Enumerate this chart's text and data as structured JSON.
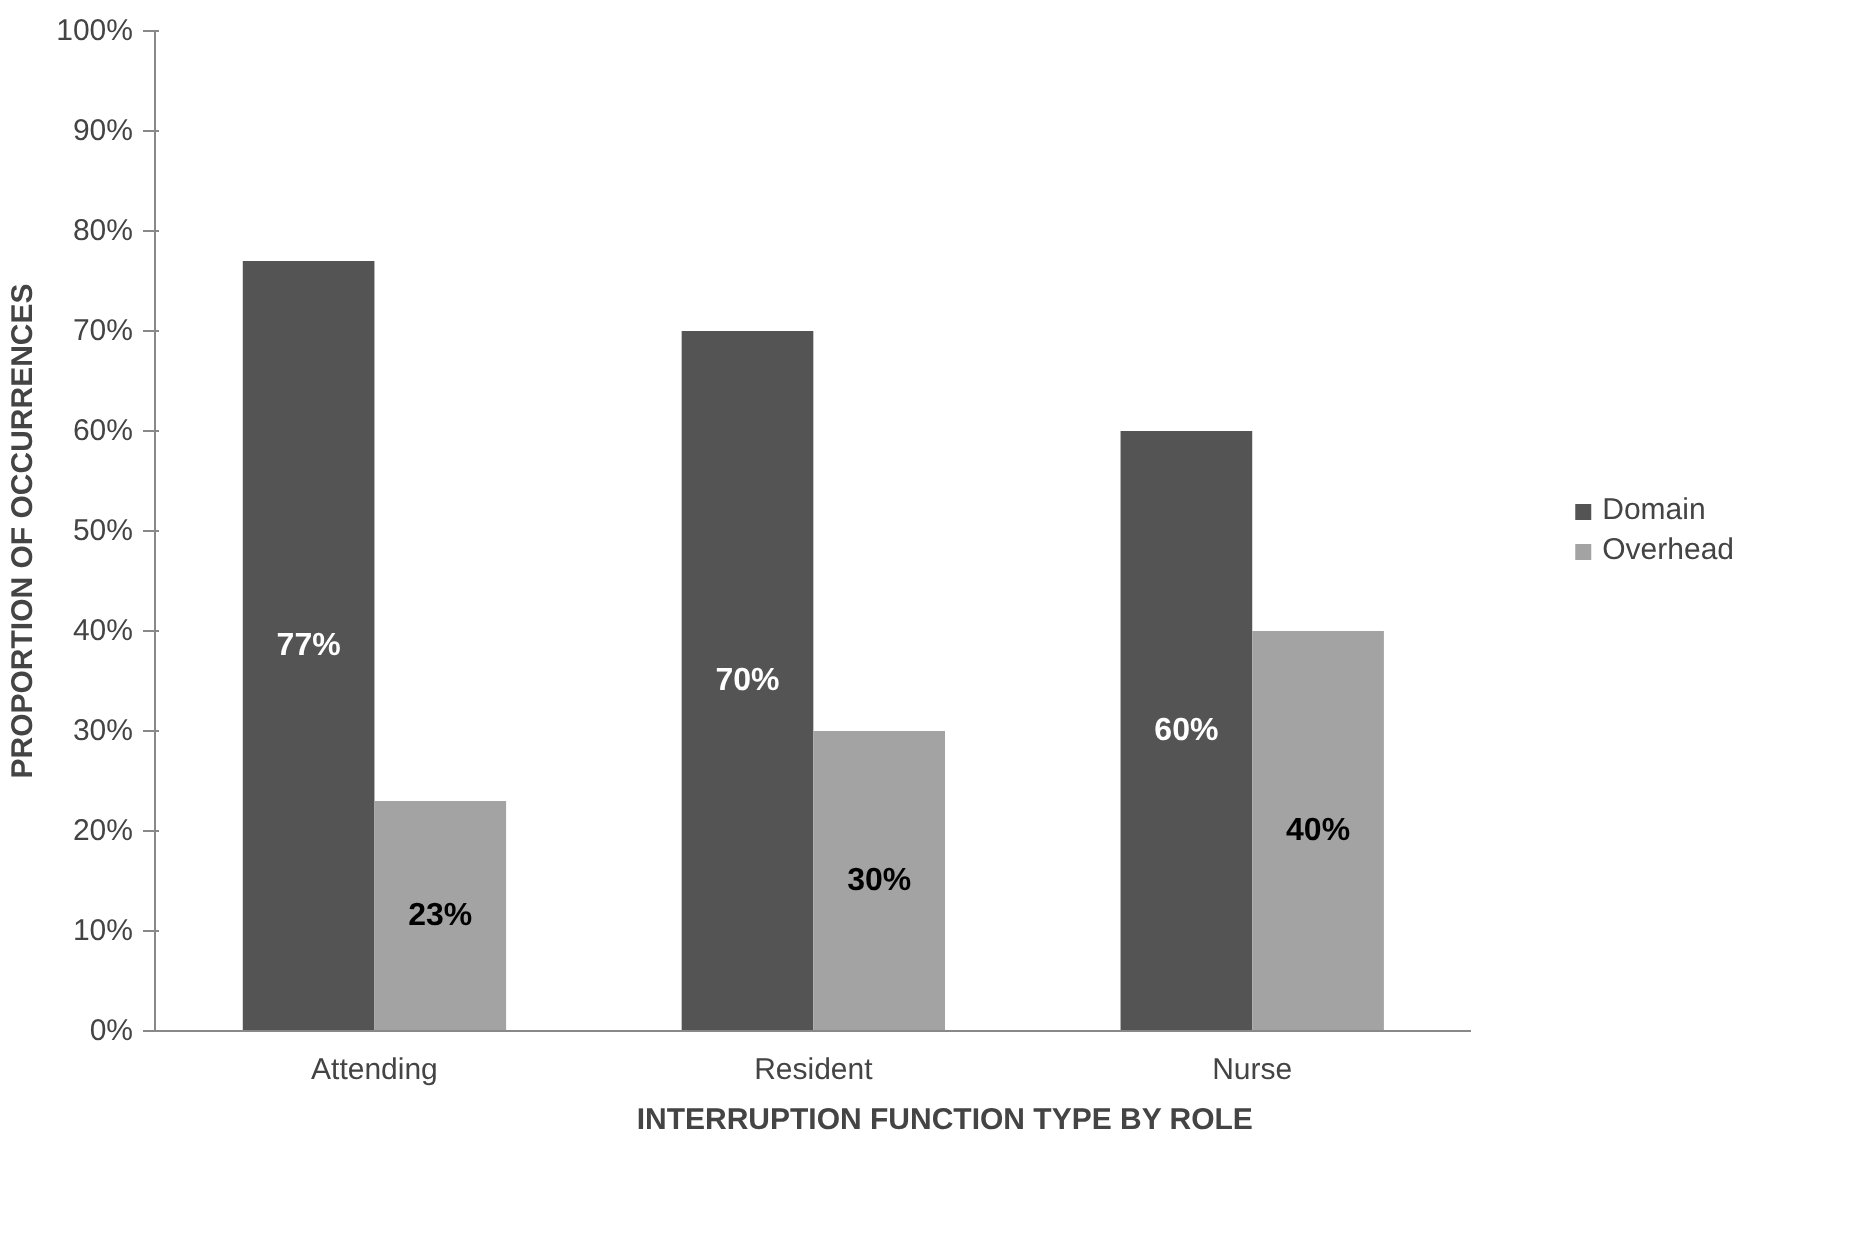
{
  "chart_data": {
    "type": "bar",
    "xlabel": "INTERRUPTION FUNCTION TYPE BY ROLE",
    "ylabel": "PROPORTION OF OCCURRENCES",
    "categories": [
      "Attending",
      "Resident",
      "Nurse"
    ],
    "series": [
      {
        "name": "Domain",
        "color": "#545454",
        "values": [
          77,
          70,
          60
        ],
        "value_labels": [
          "77%",
          "70%",
          "60%"
        ]
      },
      {
        "name": "Overhead",
        "color": "#a3a3a3",
        "values": [
          23,
          30,
          40
        ],
        "value_labels": [
          "23%",
          "30%",
          "40%"
        ]
      }
    ],
    "ylim": [
      0,
      100
    ],
    "yticks": [
      {
        "value": 0,
        "label": "0%"
      },
      {
        "value": 10,
        "label": "10%"
      },
      {
        "value": 20,
        "label": "20%"
      },
      {
        "value": 30,
        "label": "30%"
      },
      {
        "value": 40,
        "label": "40%"
      },
      {
        "value": 50,
        "label": "50%"
      },
      {
        "value": 60,
        "label": "60%"
      },
      {
        "value": 70,
        "label": "70%"
      },
      {
        "value": 80,
        "label": "80%"
      },
      {
        "value": 90,
        "label": "90%"
      },
      {
        "value": 100,
        "label": "100%"
      }
    ],
    "grid": false,
    "legend": "right"
  }
}
